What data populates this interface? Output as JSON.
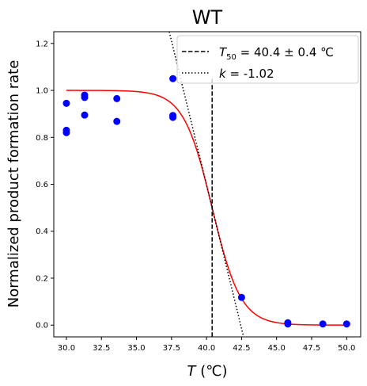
{
  "chart_data": {
    "type": "scatter",
    "title": "WT",
    "xlabel_italic": "T",
    "xlabel_unit": " (℃)",
    "ylabel": "Normalized product formation rate",
    "xlim": [
      29.1,
      51.0
    ],
    "ylim": [
      -0.05,
      1.25
    ],
    "xticks": [
      30.0,
      32.5,
      35.0,
      37.5,
      40.0,
      42.5,
      45.0,
      47.5,
      50.0
    ],
    "xtick_labels": [
      "30.0",
      "32.5",
      "35.0",
      "37.5",
      "40.0",
      "42.5",
      "45.0",
      "47.5",
      "50.0"
    ],
    "yticks": [
      0.0,
      0.2,
      0.4,
      0.6,
      0.8,
      1.0,
      1.2
    ],
    "ytick_labels": [
      "0.0",
      "0.2",
      "0.4",
      "0.6",
      "0.8",
      "1.0",
      "1.2"
    ],
    "points": {
      "color": "#0000ff",
      "x": [
        30.0,
        30.0,
        30.0,
        31.3,
        31.3,
        31.3,
        33.6,
        33.6,
        37.6,
        37.6,
        37.6,
        42.5,
        45.8,
        45.8,
        48.3,
        50.0
      ],
      "y": [
        0.945,
        0.83,
        0.82,
        0.98,
        0.97,
        0.895,
        0.965,
        0.868,
        1.05,
        0.893,
        0.885,
        0.118,
        0.01,
        0.005,
        0.005,
        0.005
      ]
    },
    "fit_curve": {
      "color": "#ff0000",
      "model": "1/(1+exp((T - T50)/s))",
      "T50": 40.4,
      "s": 1.02,
      "x_range": [
        30.0,
        50.0
      ]
    },
    "t50_line": {
      "x": 40.4,
      "y_range": [
        -0.05,
        1.05
      ],
      "color": "#000000",
      "style": "dashed"
    },
    "slope_line": {
      "color": "#000000",
      "style": "dotted"
    },
    "legend": {
      "position": "top-right",
      "t50_symbol": "T",
      "t50_sub": "50",
      "t50_rest": " = 40.4 ± 0.4 ℃",
      "k_symbol": "k",
      "k_rest": " = -1.02"
    }
  }
}
